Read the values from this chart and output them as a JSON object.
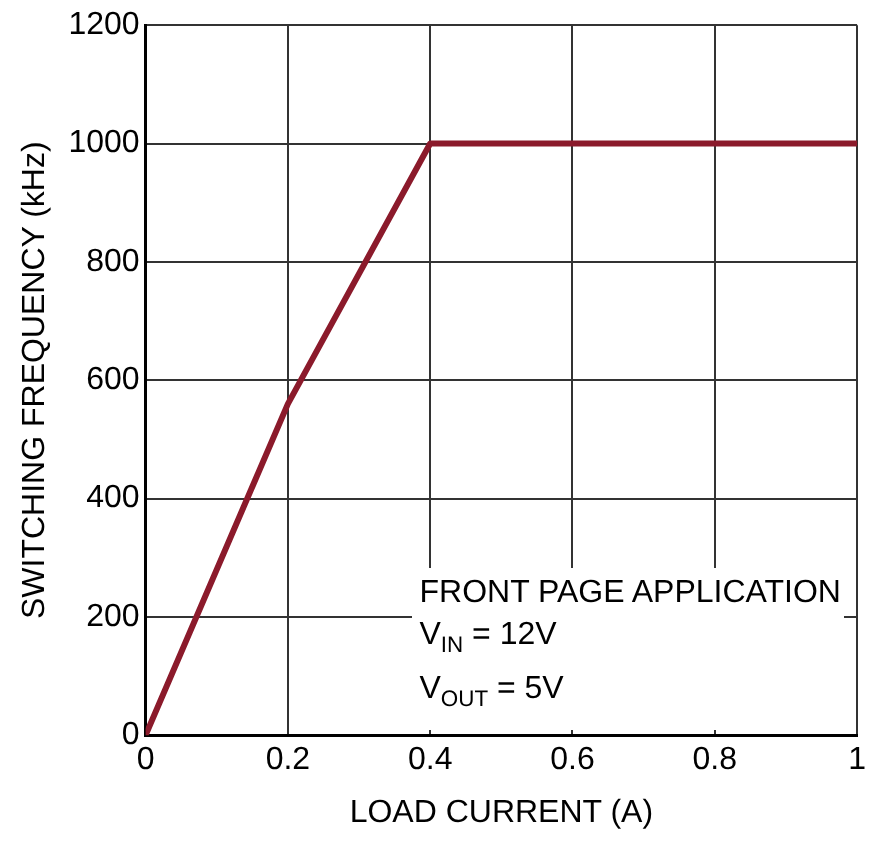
{
  "chart_data": {
    "type": "line",
    "xlabel": "LOAD CURRENT (A)",
    "ylabel": "SWITCHING FREQUENCY (kHz)",
    "x": [
      0,
      0.2,
      0.4,
      1
    ],
    "series": [
      {
        "color": "#8b1a2b",
        "values": [
          0,
          560,
          1000,
          1000
        ]
      }
    ],
    "xlim": [
      0,
      1
    ],
    "xticks": [
      0,
      0.2,
      0.4,
      0.6,
      0.8,
      1
    ],
    "ylim": [
      0,
      1200
    ],
    "yticks": [
      0,
      200,
      400,
      600,
      800,
      1000,
      1200
    ],
    "grid": true,
    "legend": false,
    "marker": "none",
    "line_style": "solid",
    "annotations": [
      "FRONT PAGE APPLICATION",
      "V$_{IN}$ = 12V",
      "V$_{OUT}$ = 5V"
    ]
  }
}
